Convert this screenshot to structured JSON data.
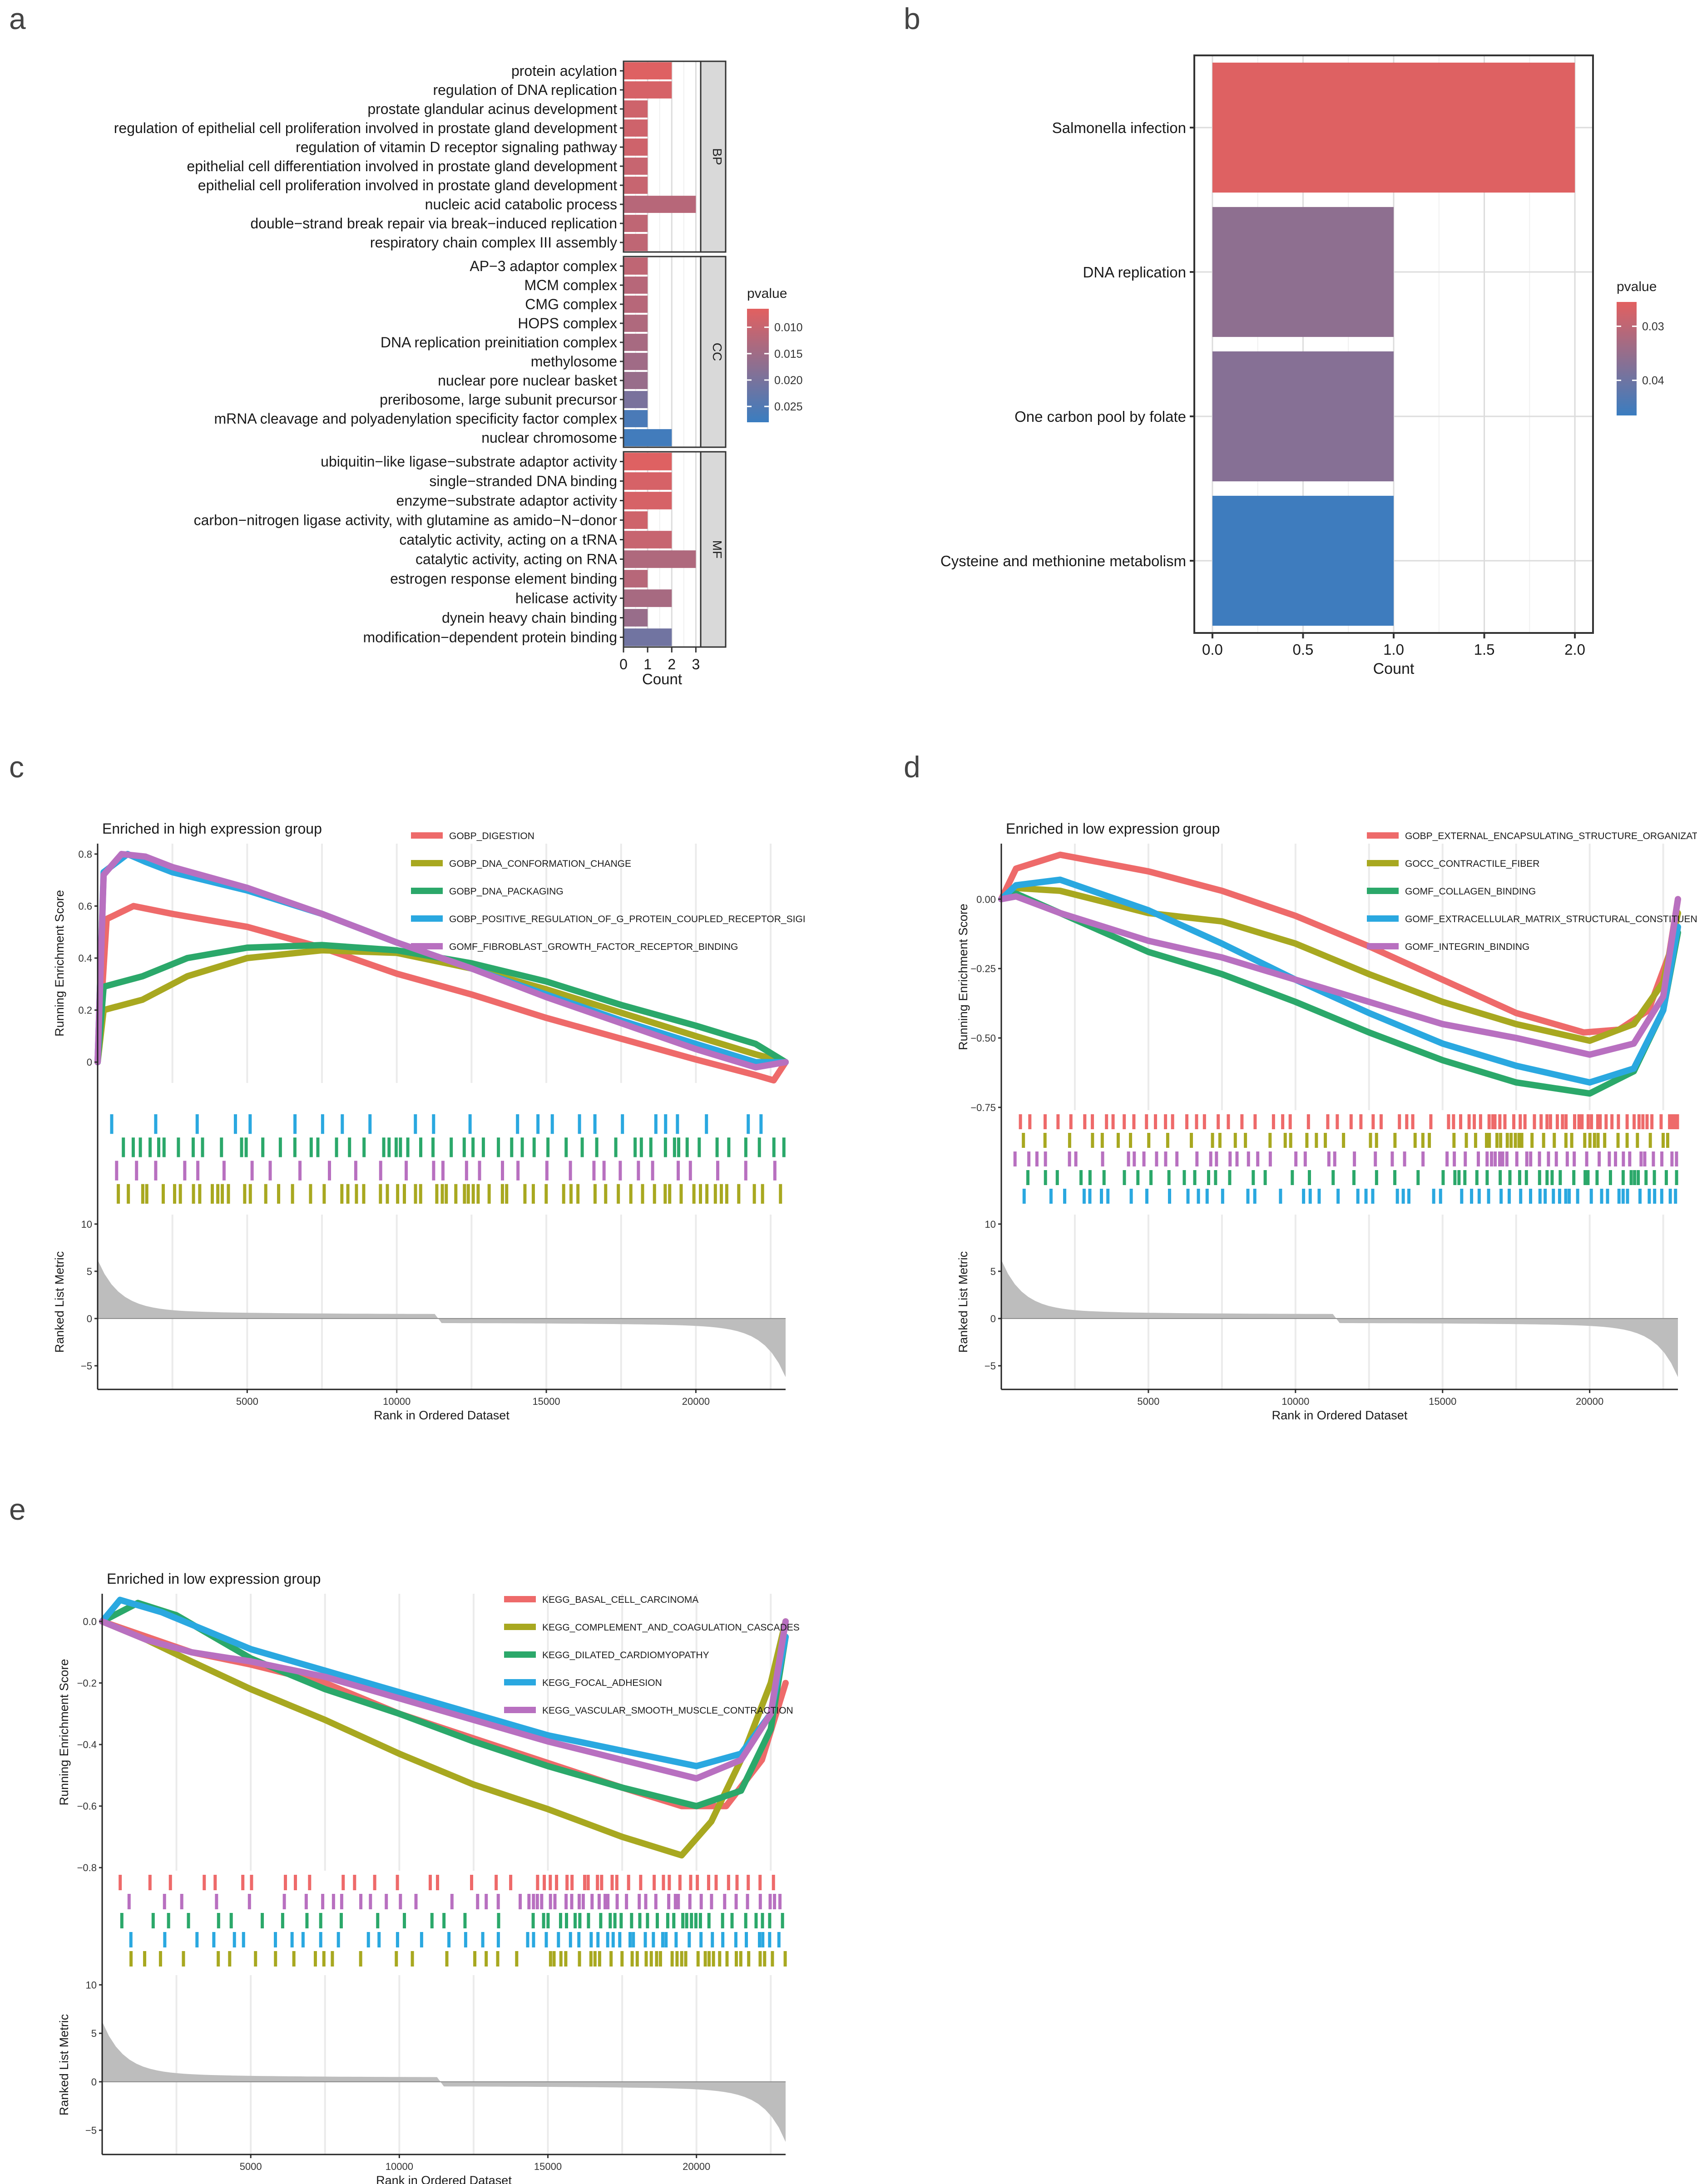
{
  "panel_labels": [
    "a",
    "b",
    "c",
    "d",
    "e"
  ],
  "chart_data": [
    {
      "panel": "a",
      "type": "bar",
      "orientation": "horizontal",
      "xlabel": "Count",
      "xticks": [
        0,
        1,
        2,
        3
      ],
      "xlim": [
        0,
        3.2
      ],
      "legend": {
        "title": "pvalue",
        "ticks": [
          0.01,
          0.015,
          0.02,
          0.025
        ],
        "tick_labels": [
          "0.010",
          "0.015",
          "0.020",
          "0.025"
        ],
        "range": [
          0.0065,
          0.028
        ],
        "low_color": "#e26060",
        "high_color": "#3a7dc0"
      },
      "facets": [
        {
          "name": "BP",
          "bars": [
            {
              "term": "protein acylation",
              "count": 2,
              "pvalue": 0.007
            },
            {
              "term": "regulation of DNA replication",
              "count": 2,
              "pvalue": 0.008
            },
            {
              "term": "prostate glandular acinus development",
              "count": 1,
              "pvalue": 0.009
            },
            {
              "term": "regulation of epithelial cell proliferation involved in prostate gland development",
              "count": 1,
              "pvalue": 0.009
            },
            {
              "term": "regulation of vitamin D receptor signaling pathway",
              "count": 1,
              "pvalue": 0.009
            },
            {
              "term": "epithelial cell differentiation involved in prostate gland development",
              "count": 1,
              "pvalue": 0.01
            },
            {
              "term": "epithelial cell proliferation involved in prostate gland development",
              "count": 1,
              "pvalue": 0.01
            },
            {
              "term": "nucleic acid catabolic process",
              "count": 3,
              "pvalue": 0.012
            },
            {
              "term": "double−strand break repair via break−induced replication",
              "count": 1,
              "pvalue": 0.011
            },
            {
              "term": "respiratory chain complex III assembly",
              "count": 1,
              "pvalue": 0.011
            }
          ]
        },
        {
          "name": "CC",
          "bars": [
            {
              "term": "AP−3 adaptor complex",
              "count": 1,
              "pvalue": 0.011
            },
            {
              "term": "MCM complex",
              "count": 1,
              "pvalue": 0.012
            },
            {
              "term": "CMG complex",
              "count": 1,
              "pvalue": 0.012
            },
            {
              "term": "HOPS complex",
              "count": 1,
              "pvalue": 0.013
            },
            {
              "term": "DNA replication preinitiation complex",
              "count": 1,
              "pvalue": 0.014
            },
            {
              "term": "methylosome",
              "count": 1,
              "pvalue": 0.015
            },
            {
              "term": "nuclear pore nuclear basket",
              "count": 1,
              "pvalue": 0.016
            },
            {
              "term": "preribosome, large subunit precursor",
              "count": 1,
              "pvalue": 0.02
            },
            {
              "term": "mRNA cleavage and polyadenylation specificity factor complex",
              "count": 1,
              "pvalue": 0.026
            },
            {
              "term": "nuclear chromosome",
              "count": 2,
              "pvalue": 0.027
            }
          ]
        },
        {
          "name": "MF",
          "bars": [
            {
              "term": "ubiquitin−like ligase−substrate adaptor activity",
              "count": 2,
              "pvalue": 0.007
            },
            {
              "term": "single−stranded DNA binding",
              "count": 2,
              "pvalue": 0.008
            },
            {
              "term": "enzyme−substrate adaptor activity",
              "count": 2,
              "pvalue": 0.008
            },
            {
              "term": "carbon−nitrogen ligase activity, with glutamine as amido−N−donor",
              "count": 1,
              "pvalue": 0.009
            },
            {
              "term": "catalytic activity, acting on a tRNA",
              "count": 2,
              "pvalue": 0.01
            },
            {
              "term": "catalytic activity, acting on RNA",
              "count": 3,
              "pvalue": 0.013
            },
            {
              "term": "estrogen response element binding",
              "count": 1,
              "pvalue": 0.012
            },
            {
              "term": "helicase activity",
              "count": 2,
              "pvalue": 0.014
            },
            {
              "term": "dynein heavy chain binding",
              "count": 1,
              "pvalue": 0.016
            },
            {
              "term": "modification−dependent protein binding",
              "count": 2,
              "pvalue": 0.021
            }
          ]
        }
      ]
    },
    {
      "panel": "b",
      "type": "bar",
      "orientation": "horizontal",
      "xlabel": "Count",
      "xticks": [
        0,
        0.5,
        1,
        1.5,
        2
      ],
      "xtick_labels": [
        "0.0",
        "0.5",
        "1.0",
        "1.5",
        "2.0"
      ],
      "xlim": [
        -0.1,
        2.1
      ],
      "categories": [
        "Salmonella infection",
        "DNA replication",
        "One carbon pool by folate",
        "Cysteine and methionine metabolism"
      ],
      "values": [
        2,
        1,
        1,
        1
      ],
      "pvalues": [
        0.026,
        0.036,
        0.037,
        0.046
      ],
      "legend": {
        "title": "pvalue",
        "ticks": [
          0.03,
          0.04
        ],
        "tick_labels": [
          "0.03",
          "0.04"
        ],
        "range": [
          0.0255,
          0.0465
        ],
        "low_color": "#e26060",
        "high_color": "#3a7dc0"
      }
    },
    {
      "panel": "c",
      "type": "line",
      "title": "Enriched in high expression group",
      "ylabel_top": "Running Enrichment Score",
      "ylabel_bottom": "Ranked List Metric",
      "xlabel": "Rank in Ordered Dataset",
      "xlim": [
        0,
        23000
      ],
      "xticks": [
        5000,
        10000,
        15000,
        20000
      ],
      "ylim_top": [
        -0.08,
        0.84
      ],
      "yticks_top": [
        0,
        0.2,
        0.4,
        0.6,
        0.8
      ],
      "ytick_labels_top": [
        "0",
        "0.2",
        "0.4",
        "0.6",
        "0.8"
      ],
      "ylim_bottom": [
        -7.5,
        11
      ],
      "yticks_bottom": [
        -5,
        0,
        5,
        10
      ],
      "ytick_labels_bottom": [
        "−5",
        "0",
        "5",
        "10"
      ],
      "legend_position": "top-right",
      "series": [
        {
          "name": "GOBP_DIGESTION",
          "color": "#ee6a6a",
          "x": [
            0,
            300,
            1200,
            2500,
            5000,
            7500,
            10000,
            12500,
            15000,
            17500,
            20000,
            22000,
            22600,
            23000
          ],
          "y": [
            0.0,
            0.55,
            0.6,
            0.57,
            0.52,
            0.44,
            0.34,
            0.26,
            0.17,
            0.09,
            0.01,
            -0.05,
            -0.07,
            0.0
          ]
        },
        {
          "name": "GOBP_DNA_CONFORMATION_CHANGE",
          "color": "#a8a820",
          "x": [
            0,
            200,
            1500,
            3000,
            5000,
            7500,
            10000,
            12500,
            15000,
            17500,
            20000,
            22000,
            23000
          ],
          "y": [
            0.0,
            0.2,
            0.24,
            0.33,
            0.4,
            0.43,
            0.42,
            0.36,
            0.28,
            0.19,
            0.1,
            0.03,
            0.0
          ]
        },
        {
          "name": "GOBP_DNA_PACKAGING",
          "color": "#2ba86a",
          "x": [
            0,
            200,
            1500,
            3000,
            5000,
            7500,
            10000,
            12500,
            15000,
            17500,
            20000,
            22000,
            23000
          ],
          "y": [
            0.0,
            0.29,
            0.33,
            0.4,
            0.44,
            0.45,
            0.43,
            0.38,
            0.31,
            0.22,
            0.14,
            0.07,
            0.0
          ]
        },
        {
          "name": "GOBP_POSITIVE_REGULATION_OF_G_PROTEIN_COUPLED_RECEPTOR_SIGI",
          "color": "#2aa8e0",
          "x": [
            0,
            200,
            1000,
            1600,
            2500,
            5000,
            7500,
            10000,
            12500,
            15000,
            17500,
            20000,
            22000,
            23000
          ],
          "y": [
            0.0,
            0.73,
            0.8,
            0.77,
            0.73,
            0.66,
            0.57,
            0.46,
            0.36,
            0.26,
            0.16,
            0.07,
            0.0,
            0.0
          ]
        },
        {
          "name": "GOMF_FIBROBLAST_GROWTH_FACTOR_RECEPTOR_BINDING",
          "color": "#b870c0",
          "x": [
            0,
            200,
            800,
            1600,
            2500,
            5000,
            7500,
            10000,
            12500,
            15000,
            17500,
            20000,
            22000,
            23000
          ],
          "y": [
            0.0,
            0.72,
            0.8,
            0.79,
            0.75,
            0.67,
            0.57,
            0.46,
            0.36,
            0.25,
            0.15,
            0.05,
            -0.02,
            0.0
          ]
        }
      ],
      "hit_rows": 4
    },
    {
      "panel": "d",
      "type": "line",
      "title": "Enriched in low expression group",
      "ylabel_top": "Running Enrichment Score",
      "ylabel_bottom": "Ranked List Metric",
      "xlabel": "Rank in Ordered Dataset",
      "xlim": [
        0,
        23000
      ],
      "xticks": [
        5000,
        10000,
        15000,
        20000
      ],
      "ylim_top": [
        -0.76,
        0.2
      ],
      "yticks_top": [
        -0.75,
        -0.5,
        -0.25,
        0
      ],
      "ytick_labels_top": [
        "−0.75",
        "−0.50",
        "−0.25",
        "0.00"
      ],
      "ylim_bottom": [
        -7.5,
        11
      ],
      "yticks_bottom": [
        -5,
        0,
        5,
        10
      ],
      "ytick_labels_bottom": [
        "−5",
        "0",
        "5",
        "10"
      ],
      "legend_position": "top-right",
      "series": [
        {
          "name": "GOBP_EXTERNAL_ENCAPSULATING_STRUCTURE_ORGANIZAT",
          "color": "#ee6a6a",
          "x": [
            0,
            500,
            2000,
            5000,
            7500,
            10000,
            12500,
            15000,
            17500,
            19800,
            21000,
            22000,
            22700,
            23000
          ],
          "y": [
            0.0,
            0.11,
            0.16,
            0.1,
            0.03,
            -0.06,
            -0.17,
            -0.29,
            -0.41,
            -0.48,
            -0.47,
            -0.4,
            -0.2,
            0.0
          ]
        },
        {
          "name": "GOCC_CONTRACTILE_FIBER",
          "color": "#a8a820",
          "x": [
            0,
            500,
            2000,
            5000,
            7500,
            10000,
            12500,
            15000,
            17500,
            20000,
            21500,
            22500,
            23000
          ],
          "y": [
            0.0,
            0.04,
            0.03,
            -0.05,
            -0.08,
            -0.16,
            -0.27,
            -0.37,
            -0.45,
            -0.51,
            -0.45,
            -0.3,
            -0.05
          ]
        },
        {
          "name": "GOMF_COLLAGEN_BINDING",
          "color": "#2ba86a",
          "x": [
            0,
            500,
            2000,
            5000,
            7500,
            10000,
            12500,
            15000,
            17500,
            20000,
            21500,
            22500,
            23000
          ],
          "y": [
            0.0,
            0.02,
            -0.05,
            -0.19,
            -0.27,
            -0.37,
            -0.48,
            -0.58,
            -0.66,
            -0.7,
            -0.62,
            -0.4,
            -0.12
          ]
        },
        {
          "name": "GOMF_EXTRACELLULAR_MATRIX_STRUCTURAL_CONSTITUEN",
          "color": "#2aa8e0",
          "x": [
            0,
            500,
            2000,
            5000,
            7500,
            10000,
            12500,
            15000,
            17500,
            20000,
            21500,
            22500,
            23000
          ],
          "y": [
            0.0,
            0.05,
            0.07,
            -0.04,
            -0.16,
            -0.29,
            -0.41,
            -0.52,
            -0.6,
            -0.66,
            -0.61,
            -0.4,
            -0.1
          ]
        },
        {
          "name": "GOMF_INTEGRIN_BINDING",
          "color": "#b870c0",
          "x": [
            0,
            500,
            2000,
            5000,
            7500,
            10000,
            12500,
            15000,
            17500,
            20000,
            21500,
            22500,
            23000
          ],
          "y": [
            0.0,
            0.01,
            -0.05,
            -0.15,
            -0.21,
            -0.29,
            -0.37,
            -0.45,
            -0.5,
            -0.56,
            -0.52,
            -0.35,
            0.0
          ]
        }
      ],
      "hit_rows": 5
    },
    {
      "panel": "e",
      "type": "line",
      "title": "Enriched in low expression group",
      "ylabel_top": "Running Enrichment Score",
      "ylabel_bottom": "Ranked List Metric",
      "xlabel": "Rank in Ordered Dataset",
      "xlim": [
        0,
        23000
      ],
      "xticks": [
        5000,
        10000,
        15000,
        20000
      ],
      "ylim_top": [
        -0.81,
        0.09
      ],
      "yticks_top": [
        -0.8,
        -0.6,
        -0.4,
        -0.2,
        0
      ],
      "ytick_labels_top": [
        "−0.8",
        "−0.6",
        "−0.4",
        "−0.2",
        "0.0"
      ],
      "ylim_bottom": [
        -7.5,
        11
      ],
      "yticks_bottom": [
        -5,
        0,
        5,
        10
      ],
      "ytick_labels_bottom": [
        "−5",
        "0",
        "5",
        "10"
      ],
      "legend_position": "top-right",
      "series": [
        {
          "name": "KEGG_BASAL_CELL_CARCINOMA",
          "color": "#ee6a6a",
          "x": [
            0,
            1500,
            3000,
            5000,
            7500,
            10000,
            12500,
            15000,
            17500,
            19500,
            21000,
            22200,
            23000
          ],
          "y": [
            0.0,
            -0.05,
            -0.1,
            -0.14,
            -0.2,
            -0.3,
            -0.38,
            -0.46,
            -0.54,
            -0.6,
            -0.6,
            -0.45,
            -0.2
          ]
        },
        {
          "name": "KEGG_COMPLEMENT_AND_COAGULATION_CASCADES",
          "color": "#a8a820",
          "x": [
            0,
            1500,
            3000,
            5000,
            7500,
            10000,
            12500,
            15000,
            17500,
            19500,
            20500,
            21500,
            22500,
            23000
          ],
          "y": [
            0.0,
            -0.06,
            -0.13,
            -0.22,
            -0.32,
            -0.43,
            -0.53,
            -0.61,
            -0.7,
            -0.76,
            -0.65,
            -0.45,
            -0.2,
            0.0
          ]
        },
        {
          "name": "KEGG_DILATED_CARDIOMYOPATHY",
          "color": "#2ba86a",
          "x": [
            0,
            1200,
            2500,
            5000,
            7500,
            10000,
            12500,
            15000,
            17500,
            20000,
            21500,
            22500,
            23000
          ],
          "y": [
            0.0,
            0.06,
            0.02,
            -0.12,
            -0.22,
            -0.3,
            -0.39,
            -0.47,
            -0.54,
            -0.6,
            -0.55,
            -0.35,
            -0.05
          ]
        },
        {
          "name": "KEGG_FOCAL_ADHESION",
          "color": "#2aa8e0",
          "x": [
            0,
            600,
            2000,
            5000,
            7500,
            10000,
            12500,
            15000,
            17500,
            20000,
            21500,
            22500,
            23000
          ],
          "y": [
            0.0,
            0.07,
            0.03,
            -0.09,
            -0.16,
            -0.23,
            -0.3,
            -0.37,
            -0.42,
            -0.47,
            -0.43,
            -0.3,
            -0.05
          ]
        },
        {
          "name": "KEGG_VASCULAR_SMOOTH_MUSCLE_CONTRACTION",
          "color": "#b870c0",
          "x": [
            0,
            1500,
            3000,
            5000,
            7500,
            10000,
            12500,
            15000,
            17500,
            20000,
            21500,
            22500,
            23000
          ],
          "y": [
            0.0,
            -0.06,
            -0.1,
            -0.13,
            -0.18,
            -0.25,
            -0.32,
            -0.39,
            -0.45,
            -0.51,
            -0.45,
            -0.3,
            0.0
          ]
        }
      ],
      "hit_rows": 5
    }
  ]
}
